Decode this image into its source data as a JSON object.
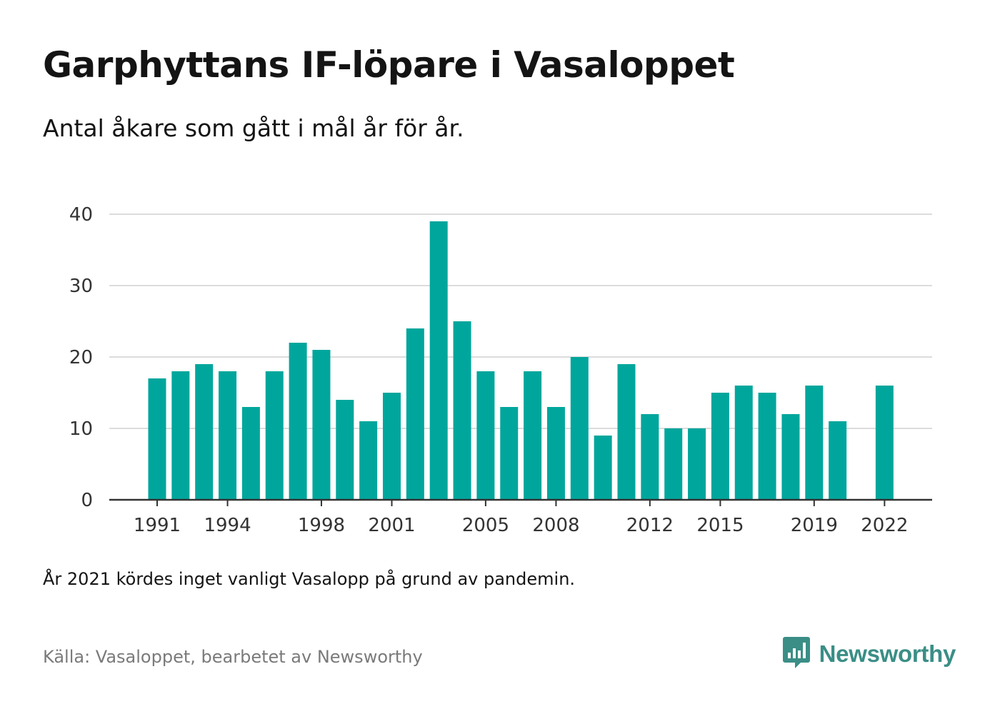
{
  "header": {
    "title": "Garphyttans IF-löpare i Vasaloppet",
    "subtitle": "Antal åkare som gått i mål år för år."
  },
  "footer": {
    "note": "År 2021 kördes inget vanligt Vasalopp på grund av pandemin.",
    "source": "Källa: Vasaloppet, bearbetet av Newsworthy",
    "brand": "Newsworthy"
  },
  "colors": {
    "bar": "#00a69c",
    "brand": "#3a8e86",
    "grid": "#dcdcdc",
    "axis": "#333333"
  },
  "icons": {
    "brand_logo": "bar-chart-speech-bubble-icon"
  },
  "chart_data": {
    "type": "bar",
    "title": "Garphyttans IF-löpare i Vasaloppet",
    "subtitle": "Antal åkare som gått i mål år för år.",
    "x": [
      1991,
      1992,
      1993,
      1994,
      1995,
      1996,
      1997,
      1998,
      1999,
      2000,
      2001,
      2002,
      2003,
      2004,
      2005,
      2006,
      2007,
      2008,
      2009,
      2010,
      2011,
      2012,
      2013,
      2014,
      2015,
      2016,
      2017,
      2018,
      2019,
      2020,
      2021,
      2022
    ],
    "values": [
      17,
      18,
      19,
      18,
      13,
      18,
      22,
      21,
      14,
      11,
      15,
      24,
      39,
      25,
      18,
      13,
      18,
      13,
      20,
      9,
      19,
      12,
      10,
      10,
      15,
      16,
      15,
      12,
      16,
      11,
      null,
      16
    ],
    "xticks": [
      1991,
      1994,
      1998,
      2001,
      2005,
      2008,
      2012,
      2015,
      2019,
      2022
    ],
    "yticks": [
      0,
      10,
      20,
      30,
      40
    ],
    "ylim": [
      0,
      40
    ],
    "xlabel": "",
    "ylabel": "",
    "grid": true,
    "legend": "none"
  }
}
